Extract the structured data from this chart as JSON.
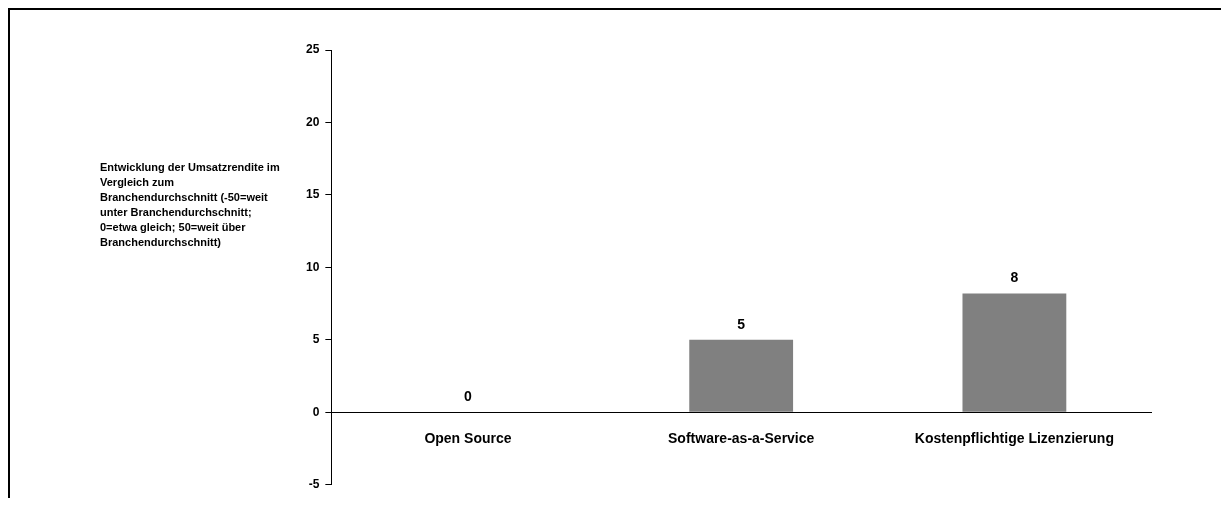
{
  "chart_data": {
    "type": "bar",
    "ylabel": "Entwicklung der Umsatzrendite im Vergleich zum Branchendurchschnitt (-50=weit unter Branchendurchschnitt; 0=etwa gleich; 50=weit über Branchendurchschnitt)",
    "categories": [
      "Open Source",
      "Software-as-a-Service",
      "Kostenpflichtige Lizenzierung"
    ],
    "values": [
      0,
      5,
      8.2
    ],
    "value_labels": [
      "0",
      "5",
      "8"
    ],
    "color": "#808080",
    "ylim": [
      -5,
      25
    ],
    "yticks": [
      -5,
      0,
      5,
      10,
      15,
      20,
      25
    ],
    "grid": false,
    "legend": false
  }
}
